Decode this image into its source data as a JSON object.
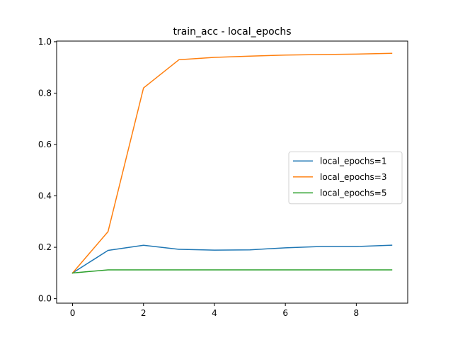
{
  "chart_data": {
    "type": "line",
    "title": "train_acc - local_epochs",
    "xlabel": "",
    "ylabel": "",
    "x": [
      0,
      1,
      2,
      3,
      4,
      5,
      6,
      7,
      8,
      9
    ],
    "xlim": [
      -0.45,
      9.45
    ],
    "ylim": [
      -0.0175,
      1.0025
    ],
    "xticks": [
      0,
      2,
      4,
      6,
      8
    ],
    "yticks": [
      0.0,
      0.2,
      0.4,
      0.6,
      0.8,
      1.0
    ],
    "ytick_labels": [
      "0.0",
      "0.2",
      "0.4",
      "0.6",
      "0.8",
      "1.0"
    ],
    "grid": false,
    "legend_position": "center-right",
    "series": [
      {
        "name": "local_epochs=1",
        "color": "#1f77b4",
        "values": [
          0.1,
          0.188,
          0.208,
          0.192,
          0.189,
          0.19,
          0.198,
          0.203,
          0.203,
          0.208
        ]
      },
      {
        "name": "local_epochs=3",
        "color": "#ff7f0e",
        "values": [
          0.1,
          0.261,
          0.82,
          0.93,
          0.939,
          0.944,
          0.948,
          0.95,
          0.952,
          0.955
        ]
      },
      {
        "name": "local_epochs=5",
        "color": "#2ca02c",
        "values": [
          0.1,
          0.112,
          0.112,
          0.112,
          0.112,
          0.112,
          0.112,
          0.112,
          0.112,
          0.112
        ]
      }
    ]
  }
}
